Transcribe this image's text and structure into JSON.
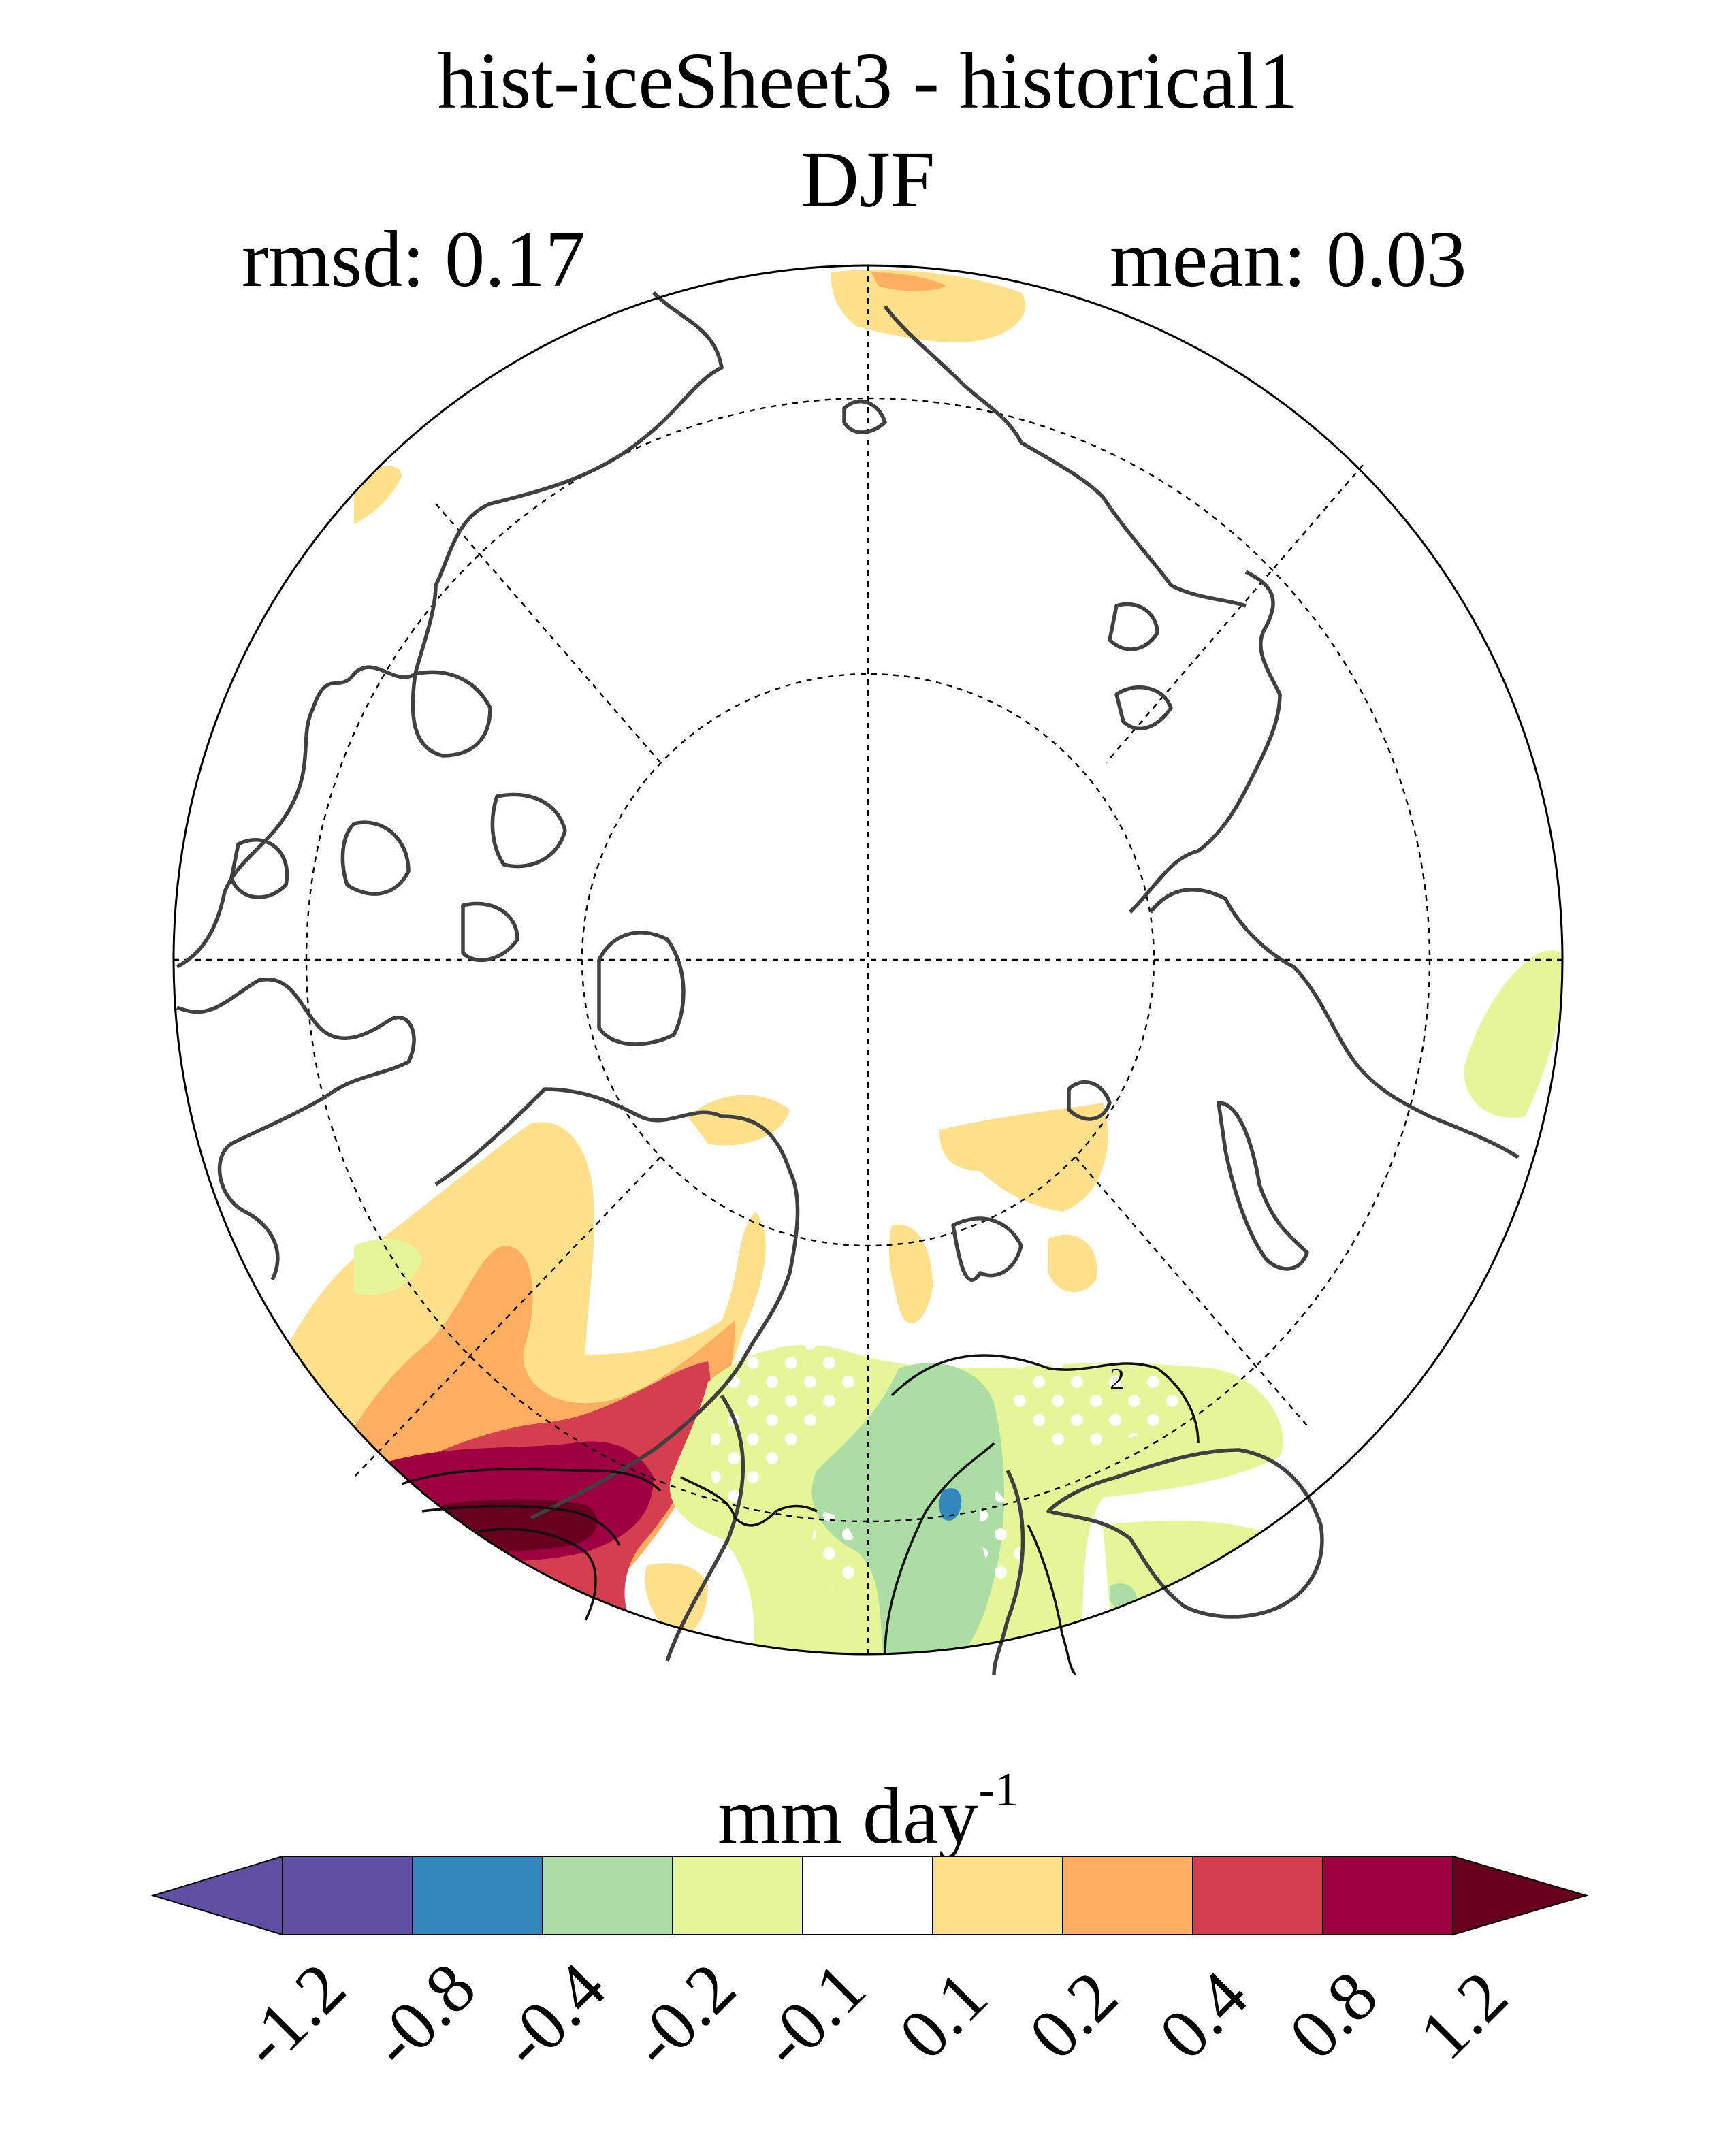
{
  "title": {
    "line1": "hist-iceSheet3 - historical1",
    "line2": "DJF"
  },
  "stats": {
    "rmsd": "rmsd: 0.17",
    "mean": "mean: 0.03"
  },
  "map": {
    "projection": "north polar stereographic",
    "contour_label": "2",
    "stippling": "white dots mark significant regions",
    "colors": {
      "coast": "#404040",
      "grid": "#000000",
      "contour": "#111111",
      "stipple": "#ffffff"
    }
  },
  "colorbar": {
    "label": "mm day",
    "label_exponent": "-1",
    "ticks": [
      "-1.2",
      "-0.8",
      "-0.4",
      "-0.2",
      "-0.1",
      "0.1",
      "0.2",
      "0.4",
      "0.8",
      "1.2"
    ],
    "colors": [
      "#5e4fa2",
      "#5e4fa2",
      "#3288bd",
      "#abdda4",
      "#e6f598",
      "#ffffff",
      "#fee08b",
      "#fdae61",
      "#d53e4f",
      "#9e0142",
      "#67001f"
    ]
  }
}
